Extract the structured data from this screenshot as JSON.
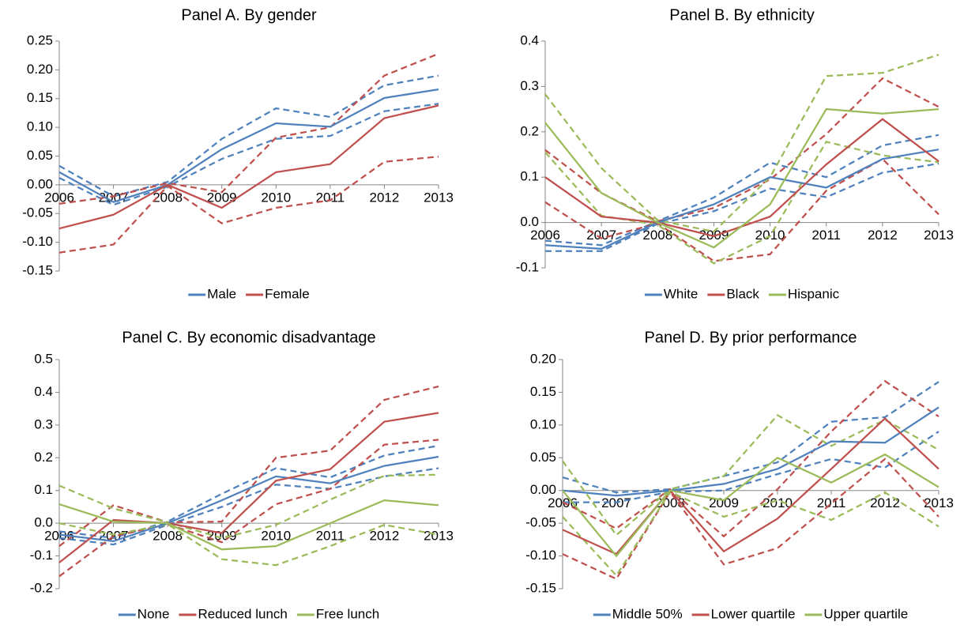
{
  "chart_data": [
    {
      "type": "line",
      "title": "Panel A. By gender",
      "categories": [
        "2006",
        "2007",
        "2008",
        "2009",
        "2010",
        "2011",
        "2012",
        "2013"
      ],
      "ylim": [
        -0.15,
        0.25
      ],
      "yticks": [
        {
          "value": -0.15,
          "label": "-0.15"
        },
        {
          "value": -0.1,
          "label": "-0.10"
        },
        {
          "value": -0.05,
          "label": "-0.05"
        },
        {
          "value": 0,
          "label": "0.00"
        },
        {
          "value": 0.05,
          "label": "0.05"
        },
        {
          "value": 0.1,
          "label": "0.10"
        },
        {
          "value": 0.15,
          "label": "0.15"
        },
        {
          "value": 0.2,
          "label": "0.20"
        },
        {
          "value": 0.25,
          "label": "0.25"
        }
      ],
      "legend": "bottom",
      "series": [
        {
          "name": "Male",
          "color": "#4f81bd",
          "values": [
            0.022,
            -0.03,
            0.0,
            0.062,
            0.107,
            0.101,
            0.151,
            0.166
          ],
          "ci_upper": [
            0.033,
            -0.02,
            0.005,
            0.08,
            0.133,
            0.118,
            0.173,
            0.19
          ],
          "ci_lower": [
            0.012,
            -0.035,
            -0.003,
            0.045,
            0.08,
            0.085,
            0.128,
            0.141
          ]
        },
        {
          "name": "Female",
          "color": "#c0504d",
          "values": [
            -0.076,
            -0.052,
            0.0,
            -0.04,
            0.022,
            0.036,
            0.116,
            0.138
          ],
          "ci_upper": [
            -0.033,
            -0.02,
            0.003,
            -0.013,
            0.082,
            0.1,
            0.19,
            0.228
          ],
          "ci_lower": [
            -0.118,
            -0.104,
            -0.002,
            -0.067,
            -0.04,
            -0.027,
            0.04,
            0.049
          ]
        }
      ]
    },
    {
      "type": "line",
      "title": "Panel B. By ethnicity",
      "categories": [
        "2006",
        "2007",
        "2008",
        "2009",
        "2010",
        "2011",
        "2012",
        "2013"
      ],
      "ylim": [
        -0.1,
        0.4
      ],
      "yticks": [
        -0.1,
        {
          "value": 0,
          "label": "0.0"
        },
        0.1,
        0.2,
        0.3,
        0.4
      ],
      "legend": "bottom",
      "series": [
        {
          "name": "White",
          "color": "#4f81bd",
          "values": [
            -0.05,
            -0.058,
            0.0,
            0.04,
            0.1,
            0.077,
            0.14,
            0.161
          ],
          "ci_upper": [
            -0.04,
            -0.05,
            0.003,
            0.055,
            0.132,
            0.1,
            0.17,
            0.193
          ],
          "ci_lower": [
            -0.063,
            -0.063,
            -0.003,
            0.025,
            0.075,
            0.056,
            0.11,
            0.13
          ]
        },
        {
          "name": "Black",
          "color": "#c0504d",
          "values": [
            0.1,
            0.013,
            0.0,
            -0.03,
            0.013,
            0.128,
            0.228,
            0.135
          ],
          "ci_upper": [
            0.16,
            0.065,
            0.003,
            0.032,
            0.095,
            0.195,
            0.318,
            0.255
          ],
          "ci_lower": [
            0.045,
            -0.035,
            -0.002,
            -0.085,
            -0.07,
            0.07,
            0.14,
            0.018
          ]
        },
        {
          "name": "Hispanic",
          "color": "#9bbb59",
          "values": [
            0.22,
            0.065,
            0.0,
            -0.055,
            0.04,
            0.25,
            0.24,
            0.25
          ],
          "ci_upper": [
            0.283,
            0.12,
            0.005,
            -0.02,
            0.1,
            0.323,
            0.33,
            0.37
          ],
          "ci_lower": [
            0.155,
            0.015,
            -0.005,
            -0.09,
            -0.03,
            0.178,
            0.148,
            0.133
          ]
        }
      ]
    },
    {
      "type": "line",
      "title": "Panel C. By economic disadvantage",
      "categories": [
        "2006",
        "2007",
        "2008",
        "2009",
        "2010",
        "2011",
        "2012",
        "2013"
      ],
      "ylim": [
        -0.2,
        0.5
      ],
      "yticks": [
        -0.2,
        -0.1,
        {
          "value": 0,
          "label": "0.0"
        },
        0.1,
        0.2,
        0.3,
        0.4,
        0.5
      ],
      "legend": "bottom",
      "series": [
        {
          "name": "None",
          "color": "#4f81bd",
          "values": [
            -0.035,
            -0.055,
            0.0,
            0.07,
            0.143,
            0.122,
            0.175,
            0.203
          ],
          "ci_upper": [
            -0.025,
            -0.045,
            0.005,
            0.09,
            0.168,
            0.14,
            0.207,
            0.237
          ],
          "ci_lower": [
            -0.045,
            -0.065,
            -0.005,
            0.05,
            0.118,
            0.105,
            0.143,
            0.168
          ]
        },
        {
          "name": "Reduced lunch",
          "color": "#c0504d",
          "values": [
            -0.12,
            0.01,
            0.0,
            -0.03,
            0.13,
            0.165,
            0.31,
            0.337
          ],
          "ci_upper": [
            -0.07,
            0.055,
            0.003,
            0.005,
            0.2,
            0.222,
            0.377,
            0.418
          ],
          "ci_lower": [
            -0.162,
            -0.04,
            -0.003,
            -0.058,
            0.058,
            0.105,
            0.24,
            0.255
          ]
        },
        {
          "name": "Free lunch",
          "color": "#9bbb59",
          "values": [
            0.058,
            0.005,
            0.0,
            -0.08,
            -0.07,
            0.0,
            0.07,
            0.055
          ],
          "ci_upper": [
            0.115,
            0.045,
            0.003,
            -0.045,
            -0.005,
            0.072,
            0.145,
            0.148
          ],
          "ci_lower": [
            0.0,
            -0.035,
            -0.003,
            -0.11,
            -0.128,
            -0.07,
            -0.005,
            -0.035
          ]
        }
      ]
    },
    {
      "type": "line",
      "title": "Panel D. By prior performance",
      "categories": [
        "2006",
        "2007",
        "2008",
        "2009",
        "2010",
        "2011",
        "2012",
        "2013"
      ],
      "ylim": [
        -0.15,
        0.2
      ],
      "yticks": [
        {
          "value": -0.15,
          "label": "-0.15"
        },
        {
          "value": -0.1,
          "label": "-0.10"
        },
        {
          "value": -0.05,
          "label": "-0.05"
        },
        {
          "value": 0,
          "label": "0.00"
        },
        {
          "value": 0.05,
          "label": "0.05"
        },
        {
          "value": 0.1,
          "label": "0.10"
        },
        {
          "value": 0.15,
          "label": "0.15"
        },
        {
          "value": 0.2,
          "label": "0.20"
        }
      ],
      "legend": "bottom",
      "series": [
        {
          "name": "Middle 50%",
          "color": "#4f81bd",
          "values": [
            0.0,
            -0.008,
            0.0,
            0.01,
            0.033,
            0.075,
            0.073,
            0.127
          ],
          "ci_upper": [
            0.02,
            -0.003,
            0.002,
            0.022,
            0.043,
            0.105,
            0.112,
            0.166
          ],
          "ci_lower": [
            -0.018,
            -0.018,
            -0.002,
            0.0,
            0.025,
            0.048,
            0.035,
            0.09
          ]
        },
        {
          "name": "Lower quartile",
          "color": "#c0504d",
          "values": [
            -0.06,
            -0.097,
            0.0,
            -0.093,
            -0.043,
            0.033,
            0.11,
            0.033
          ],
          "ci_upper": [
            -0.018,
            -0.058,
            0.002,
            -0.07,
            0.002,
            0.09,
            0.167,
            0.113
          ],
          "ci_lower": [
            -0.097,
            -0.135,
            -0.002,
            -0.113,
            -0.088,
            -0.02,
            0.048,
            -0.04
          ]
        },
        {
          "name": "Upper quartile",
          "color": "#9bbb59",
          "values": [
            0.0,
            -0.1,
            0.0,
            -0.015,
            0.05,
            0.012,
            0.055,
            0.005
          ],
          "ci_upper": [
            0.045,
            -0.068,
            0.002,
            0.022,
            0.115,
            0.068,
            0.108,
            0.062
          ],
          "ci_lower": [
            -0.04,
            -0.13,
            -0.002,
            -0.04,
            -0.015,
            -0.045,
            -0.003,
            -0.055
          ]
        }
      ]
    }
  ]
}
